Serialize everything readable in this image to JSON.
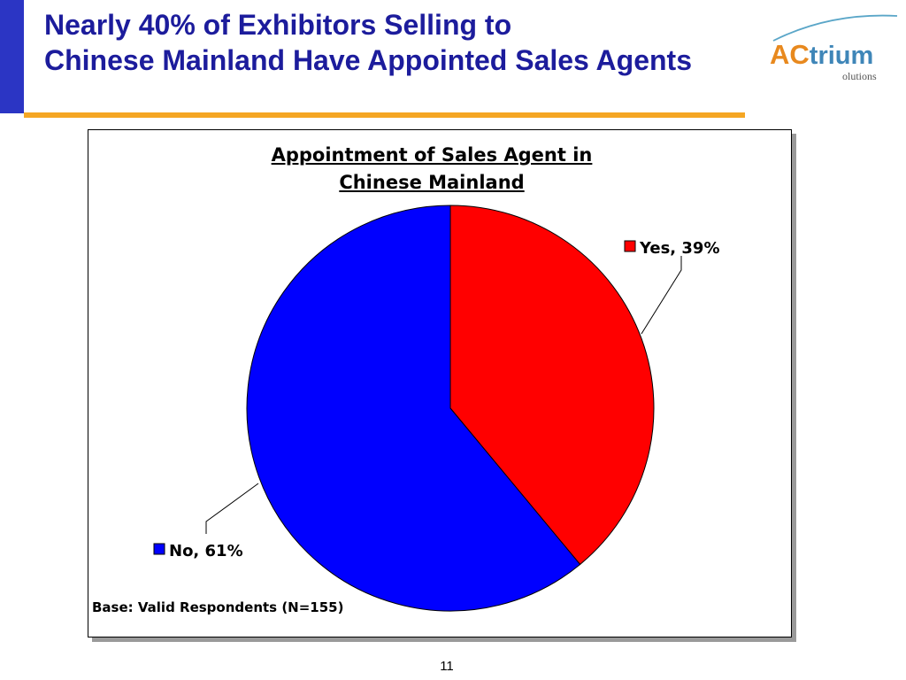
{
  "slide": {
    "title_line1": "Nearly 40% of Exhibitors Selling to",
    "title_line2": "Chinese Mainland Have Appointed Sales Agents",
    "page_number": "11",
    "base_note": "Base: Valid Respondents (N=155)",
    "logo": {
      "brand": "ACtrium",
      "tagline": "olutions"
    },
    "colors": {
      "title": "#1c1c9c",
      "accent_bar": "#2b35c4",
      "rule": "#f5a623"
    }
  },
  "chart_data": {
    "type": "pie",
    "title_line1": "Appointment of Sales Agent in",
    "title_line2": "Chinese Mainland",
    "slices": [
      {
        "label": "Yes",
        "value": 39,
        "display": "Yes, 39%",
        "color": "#ff0000"
      },
      {
        "label": "No",
        "value": 61,
        "display": "No, 61%",
        "color": "#0000ff"
      }
    ],
    "start_angle_deg": 0,
    "direction": "clockwise",
    "legend": "labels with leader lines"
  }
}
